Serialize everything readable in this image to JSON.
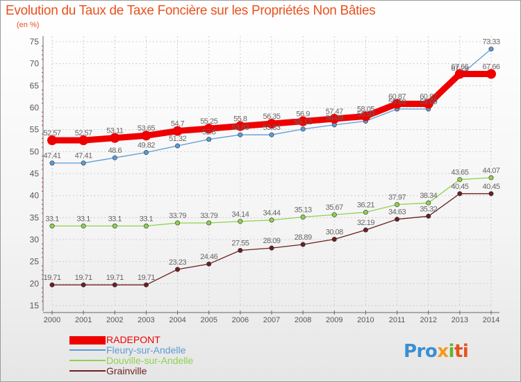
{
  "title": "Evolution du Taux de Taxe Foncière sur les Propriétés Non Bâties",
  "unit_label": "(en %)",
  "logo": {
    "p1": "Pro",
    "p2": "x",
    "p3": "i",
    "p4": "ti"
  },
  "colors": {
    "title": "#e8511e",
    "axis": "#666666",
    "grid": "#cccccc",
    "label": "#555555"
  },
  "chart_data": {
    "type": "line",
    "title": "Evolution du Taux de Taxe Foncière sur les Propriétés Non Bâties",
    "ylabel": "(en %)",
    "xlabel": "",
    "ylim": [
      15,
      75
    ],
    "yticks": [
      15,
      20,
      25,
      30,
      35,
      40,
      45,
      50,
      55,
      60,
      65,
      70,
      75
    ],
    "categories": [
      "2000",
      "2001",
      "2002",
      "2003",
      "2004",
      "2005",
      "2006",
      "2007",
      "2008",
      "2009",
      "2010",
      "2011",
      "2012",
      "2013",
      "2014"
    ],
    "grid": true,
    "legend_position": "bottom-left",
    "series": [
      {
        "name": "RADEPONT",
        "color": "#ee0000",
        "width": "thick",
        "values": [
          52.57,
          52.57,
          53.11,
          53.65,
          54.7,
          55.25,
          55.8,
          56.35,
          56.9,
          57.47,
          58.05,
          60.87,
          60.87,
          67.66,
          67.66
        ],
        "labels": [
          "52.57",
          "52.57",
          "53.11",
          "53.65",
          "54.7",
          "55.25",
          "55.8",
          "56.35",
          "56.9",
          "57.47",
          "58.05",
          "60.87",
          "60.87",
          "67.66",
          "67.66"
        ]
      },
      {
        "name": "Fleury-sur-Andelle",
        "color": "#5b9bd5",
        "width": "thin",
        "values": [
          47.41,
          47.41,
          48.6,
          49.82,
          51.32,
          52.8,
          53.83,
          53.83,
          55.12,
          56.09,
          56.93,
          59.69,
          59.69,
          67.28,
          73.33
        ],
        "labels": [
          "47.41",
          "47.41",
          "48.6",
          "49.82",
          "51.32",
          "52.8",
          "53.83",
          "53.83",
          "55.12",
          "56.09",
          "56.93",
          "59.69",
          "59.69",
          "67.28",
          "73.33"
        ]
      },
      {
        "name": "Douville-sur-Andelle",
        "color": "#8fd14f",
        "width": "thin",
        "values": [
          33.1,
          33.1,
          33.1,
          33.1,
          33.79,
          33.79,
          34.14,
          34.44,
          35.13,
          35.67,
          36.21,
          37.97,
          38.34,
          43.65,
          44.07
        ],
        "labels": [
          "33.1",
          "33.1",
          "33.1",
          "33.1",
          "33.79",
          "33.79",
          "34.14",
          "34.44",
          "35.13",
          "35.67",
          "36.21",
          "37.97",
          "38.34",
          "43.65",
          "44.07"
        ]
      },
      {
        "name": "Grainville",
        "color": "#6b1f1f",
        "width": "thin",
        "values": [
          19.71,
          19.71,
          19.71,
          19.71,
          23.23,
          24.46,
          27.55,
          28.09,
          28.89,
          30.08,
          32.19,
          34.63,
          35.32,
          40.45,
          40.45
        ],
        "labels": [
          "19.71",
          "19.71",
          "19.71",
          "19.71",
          "23.23",
          "24.46",
          "27.55",
          "28.09",
          "28.89",
          "30.08",
          "32.19",
          "34.63",
          "35.32",
          "40.45",
          "40.45"
        ]
      }
    ]
  }
}
